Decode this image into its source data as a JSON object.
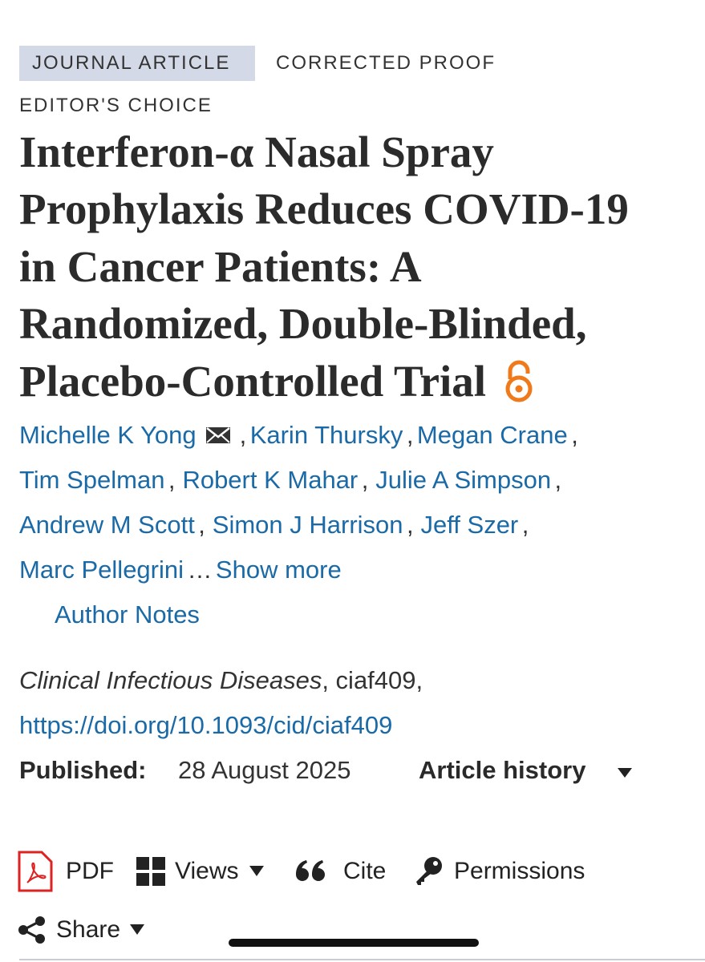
{
  "tags": {
    "type": "JOURNAL ARTICLE",
    "status": "CORRECTED PROOF",
    "badge": "EDITOR'S CHOICE"
  },
  "title_lines": [
    "Interferon-α Nasal Spray",
    "Prophylaxis Reduces COVID-19",
    "in Cancer Patients: A",
    "Randomized, Double-Blinded,",
    "Placebo-Controlled Trial"
  ],
  "authors": [
    "Michelle K Yong",
    "Karin Thursky",
    "Megan Crane",
    "Tim Spelman",
    "Robert K Mahar",
    "Julie A Simpson",
    "Andrew M Scott",
    "Simon J Harrison",
    "Jeff Szer",
    "Marc Pellegrini"
  ],
  "separator": ",",
  "ellipsis": "…",
  "show_more": "Show more",
  "author_notes": "Author Notes",
  "citation": {
    "journal": "Clinical Infectious Diseases",
    "id": ", ciaf409,",
    "doi": "https://doi.org/10.1093/cid/ciaf409"
  },
  "published": {
    "label": "Published:",
    "date": "28 August 2025",
    "history": "Article history"
  },
  "toolbar": {
    "pdf": "PDF",
    "views": "Views",
    "cite": "Cite",
    "permissions": "Permissions",
    "share": "Share"
  }
}
